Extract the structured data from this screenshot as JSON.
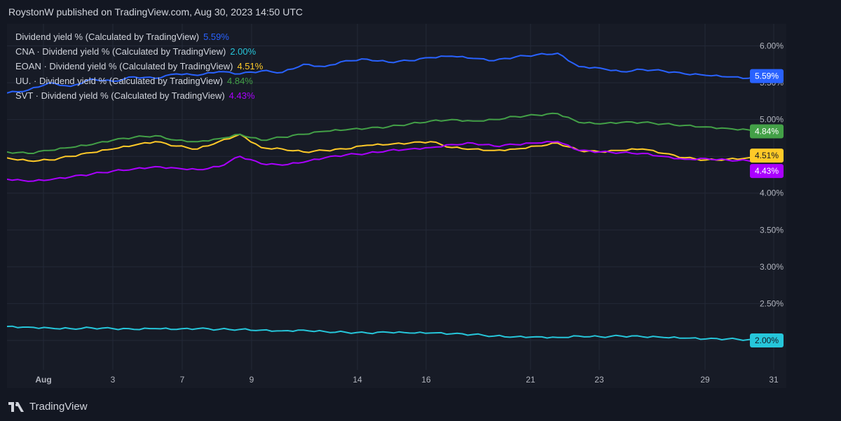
{
  "header": {
    "text": "RoystonW published on TradingView.com, Aug 30, 2023 14:50 UTC"
  },
  "footer": {
    "brand": "TradingView"
  },
  "chart_data": {
    "type": "line",
    "grid": true,
    "legend_position": "top-left",
    "ylim": [
      1.6,
      6.3
    ],
    "y_ticks": [
      {
        "value": 6.0,
        "label": "6.00%"
      },
      {
        "value": 5.5,
        "label": "5.50%"
      },
      {
        "value": 5.0,
        "label": "5.00%"
      },
      {
        "value": 4.5,
        "label": "4.50%"
      },
      {
        "value": 4.0,
        "label": "4.00%"
      },
      {
        "value": 3.5,
        "label": "3.50%"
      },
      {
        "value": 3.0,
        "label": "3.00%"
      },
      {
        "value": 2.5,
        "label": "2.50%"
      },
      {
        "value": 2.0,
        "label": "2.00%"
      }
    ],
    "x_labels": [
      {
        "label": "Aug",
        "bold": true
      },
      {
        "label": "3"
      },
      {
        "label": "7"
      },
      {
        "label": "9"
      },
      {
        "label": "14"
      },
      {
        "label": "16"
      },
      {
        "label": "21"
      },
      {
        "label": "23"
      },
      {
        "label": "29"
      },
      {
        "label": "31"
      }
    ],
    "series": [
      {
        "name": "Dividend yield % (Calculated by TradingView)",
        "last": "5.59%",
        "color": "#2962ff",
        "values": [
          5.36,
          5.4,
          5.5,
          5.45,
          5.55,
          5.52,
          5.58,
          5.56,
          5.62,
          5.6,
          5.65,
          5.62,
          5.66,
          5.64,
          5.75,
          5.72,
          5.8,
          5.82,
          5.78,
          5.8,
          5.84,
          5.86,
          5.83,
          5.8,
          5.85,
          5.88,
          5.9,
          5.72,
          5.7,
          5.65,
          5.68,
          5.66,
          5.62,
          5.6,
          5.58,
          5.56,
          5.59
        ]
      },
      {
        "name": "CNA · Dividend yield % (Calculated by TradingView)",
        "last": "2.00%",
        "color": "#26c6da",
        "values": [
          2.19,
          2.18,
          2.17,
          2.16,
          2.17,
          2.16,
          2.15,
          2.16,
          2.15,
          2.16,
          2.15,
          2.15,
          2.14,
          2.13,
          2.14,
          2.12,
          2.11,
          2.1,
          2.11,
          2.1,
          2.1,
          2.09,
          2.08,
          2.06,
          2.05,
          2.05,
          2.04,
          2.06,
          2.05,
          2.06,
          2.05,
          2.04,
          2.03,
          2.02,
          2.02,
          2.01,
          2.0
        ]
      },
      {
        "name": "EOAN · Dividend yield % (Calculated by TradingView)",
        "last": "4.51%",
        "color": "#ffca28",
        "values": [
          4.48,
          4.44,
          4.45,
          4.5,
          4.55,
          4.6,
          4.65,
          4.7,
          4.64,
          4.6,
          4.7,
          4.8,
          4.62,
          4.6,
          4.56,
          4.58,
          4.6,
          4.65,
          4.66,
          4.68,
          4.7,
          4.62,
          4.6,
          4.58,
          4.6,
          4.64,
          4.68,
          4.58,
          4.56,
          4.58,
          4.6,
          4.54,
          4.48,
          4.45,
          4.46,
          4.48,
          4.51
        ]
      },
      {
        "name": "UU. · Dividend yield % (Calculated by TradingView)",
        "last": "4.84%",
        "color": "#43a047",
        "values": [
          4.56,
          4.54,
          4.58,
          4.62,
          4.66,
          4.72,
          4.76,
          4.78,
          4.72,
          4.7,
          4.74,
          4.8,
          4.72,
          4.76,
          4.8,
          4.84,
          4.86,
          4.88,
          4.9,
          4.94,
          4.98,
          5.0,
          4.98,
          5.0,
          5.04,
          5.06,
          5.08,
          4.96,
          4.94,
          4.96,
          4.96,
          4.94,
          4.92,
          4.9,
          4.88,
          4.86,
          4.84
        ]
      },
      {
        "name": "SVT · Dividend yield % (Calculated by TradingView)",
        "last": "4.43%",
        "color": "#aa00ff",
        "values": [
          4.19,
          4.16,
          4.18,
          4.22,
          4.26,
          4.3,
          4.33,
          4.36,
          4.34,
          4.32,
          4.36,
          4.5,
          4.4,
          4.38,
          4.42,
          4.48,
          4.52,
          4.54,
          4.58,
          4.6,
          4.62,
          4.66,
          4.68,
          4.64,
          4.66,
          4.68,
          4.7,
          4.58,
          4.56,
          4.55,
          4.54,
          4.5,
          4.46,
          4.47,
          4.45,
          4.44,
          4.43
        ]
      }
    ]
  }
}
